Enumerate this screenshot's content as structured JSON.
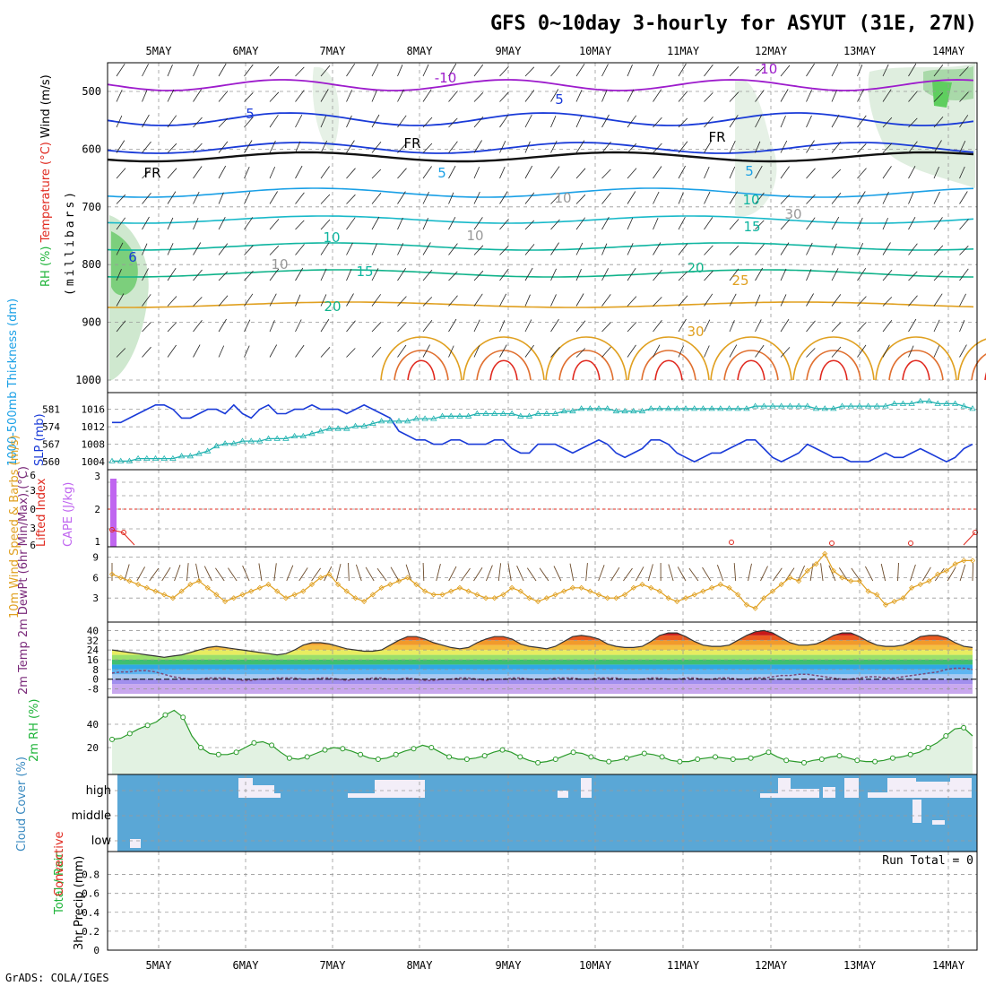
{
  "title": "GFS 0~10day 3-hourly for ASYUT (31E, 27N)",
  "footer": "GrADS: COLA/IGES",
  "run_total": "Run Total = 0",
  "dates": [
    "5MAY",
    "6MAY",
    "7MAY",
    "8MAY",
    "9MAY",
    "10MAY",
    "11MAY",
    "12MAY",
    "13MAY",
    "14MAY"
  ],
  "colors": {
    "purple": "#9d1bcc",
    "blue": "#1a3bd8",
    "lightblue": "#1aa0e6",
    "teal": "#0fb5a0",
    "orange": "#e0a020",
    "red": "#e0281e",
    "green": "#1fb43a",
    "cloud": "#5aa7d6"
  },
  "panel1": {
    "ylabel_rh": "RH (%)",
    "ylabel_temp": "Temperature (°C)",
    "ylabel_wind": "Wind (m/s)",
    "ylabel_mb": "(millibars)",
    "yticks": [
      "500",
      "600",
      "700",
      "800",
      "900",
      "1000"
    ],
    "contour_labels": [
      "-10",
      "-10",
      "5",
      "5",
      "FR",
      "FR",
      "FR",
      "5",
      "5",
      "10",
      "10",
      "15",
      "15",
      "20",
      "20",
      "25",
      "30",
      "10",
      "10",
      "10",
      "30",
      "6"
    ]
  },
  "panel2": {
    "ylabel_left": "1000-500mb Thickness (dm)",
    "ylabel_right": "SLP (mb)",
    "yticks_left": [
      "581",
      "574",
      "567",
      "560"
    ],
    "yticks_right": [
      "1016",
      "1012",
      "1008",
      "1004"
    ],
    "chart_data": {
      "type": "line",
      "series": [
        {
          "name": "SLP (mb)",
          "values": [
            1013,
            1013,
            1014,
            1015,
            1016,
            1017,
            1017,
            1016,
            1014,
            1014,
            1015,
            1016,
            1016,
            1015,
            1017,
            1015,
            1014,
            1016,
            1017,
            1015,
            1015,
            1016,
            1016,
            1017,
            1016,
            1016,
            1016,
            1015,
            1016,
            1017,
            1016,
            1015,
            1014,
            1011,
            1010,
            1009,
            1009,
            1008,
            1008,
            1009,
            1009,
            1008,
            1008,
            1008,
            1009,
            1009,
            1007,
            1006,
            1006,
            1008,
            1008,
            1008,
            1007,
            1006,
            1007,
            1008,
            1009,
            1008,
            1006,
            1005,
            1006,
            1007,
            1009,
            1009,
            1008,
            1006,
            1005,
            1004,
            1005,
            1006,
            1006,
            1007,
            1008,
            1009,
            1009,
            1007,
            1005,
            1004,
            1005,
            1006,
            1008,
            1007,
            1006,
            1005,
            1005,
            1004,
            1004,
            1004,
            1005,
            1006,
            1005,
            1005,
            1006,
            1007,
            1006,
            1005,
            1004,
            1005,
            1007,
            1008
          ]
        },
        {
          "name": "1000-500mb Thickness (dm)",
          "values": [
            559,
            559,
            559,
            560,
            560,
            560,
            560,
            560,
            561,
            561,
            562,
            563,
            565,
            566,
            566,
            567,
            567,
            567,
            568,
            568,
            568,
            569,
            569,
            570,
            571,
            572,
            572,
            572,
            573,
            573,
            574,
            575,
            575,
            575,
            575,
            576,
            576,
            576,
            577,
            577,
            577,
            577,
            578,
            578,
            578,
            578,
            578,
            577,
            577,
            578,
            578,
            578,
            579,
            579,
            580,
            580,
            580,
            580,
            579,
            579,
            579,
            579,
            580,
            580,
            580,
            580,
            580,
            580,
            580,
            580,
            580,
            580,
            580,
            580,
            581,
            581,
            581,
            581,
            581,
            581,
            581,
            580,
            580,
            580,
            581,
            581,
            581,
            581,
            581,
            581,
            582,
            582,
            582,
            583,
            583,
            582,
            582,
            582,
            581,
            580
          ]
        }
      ],
      "ylim_right": [
        1003,
        1019
      ]
    }
  },
  "panel3": {
    "ylabel_left": "Lifted Index",
    "ylabel_right": "CAPE (J/kg)",
    "yticks_left": [
      "-6",
      "-3",
      "0",
      "3",
      "6"
    ],
    "yticks_right": [
      "3",
      "2",
      "1"
    ],
    "chart_data": {
      "type": "bar",
      "values": [
        3,
        0,
        0,
        0,
        0,
        0,
        0,
        0,
        0,
        0
      ],
      "note": "CAPE bar near start only"
    }
  },
  "panel4": {
    "ylabel": "10m Wind Speed & Barbs (m/s)",
    "yticks": [
      "9",
      "6",
      "3"
    ],
    "chart_data": {
      "type": "line",
      "values": [
        6.5,
        6,
        5.5,
        5,
        4.5,
        4,
        3.5,
        3,
        4,
        5,
        5.5,
        4.5,
        3.5,
        2.5,
        3,
        3.5,
        4,
        4.5,
        5,
        4,
        3,
        3.5,
        4,
        5,
        6,
        6.5,
        5,
        4,
        3,
        2.5,
        3.5,
        4.5,
        5,
        5.5,
        6,
        5,
        4,
        3.5,
        3.5,
        4,
        4.5,
        4,
        3.5,
        3,
        3,
        3.5,
        4.5,
        4,
        3,
        2.5,
        3,
        3.5,
        4,
        4.5,
        4.5,
        4,
        3.5,
        3,
        3,
        3.5,
        4.5,
        5,
        4.5,
        4,
        3,
        2.5,
        3,
        3.5,
        4,
        4.5,
        5,
        4.5,
        3.5,
        2,
        1.5,
        3,
        4,
        5,
        6,
        5.5,
        7,
        8,
        9.5,
        7,
        6,
        5.5,
        5.5,
        4,
        3.5,
        2,
        2.5,
        3,
        4.5,
        5,
        5.5,
        6.5,
        7,
        8,
        8.5,
        8.5
      ]
    }
  },
  "panel5": {
    "ylabel": "2m Temp 2m DewPt (6hr Min/Max) (°C)",
    "yticks": [
      "40",
      "32",
      "24",
      "16",
      "8",
      "0",
      "-8"
    ],
    "chart_data": {
      "type": "area",
      "series": [
        {
          "name": "2m Temp",
          "values": [
            24,
            23,
            22,
            21,
            20,
            19,
            18,
            19,
            20,
            22,
            24,
            26,
            27,
            26,
            25,
            24,
            23,
            22,
            21,
            20,
            21,
            24,
            28,
            30,
            30,
            29,
            27,
            25,
            24,
            23,
            23,
            24,
            28,
            32,
            35,
            35,
            33,
            30,
            28,
            26,
            25,
            26,
            30,
            33,
            35,
            35,
            33,
            29,
            27,
            26,
            25,
            27,
            31,
            35,
            36,
            35,
            33,
            29,
            27,
            26,
            26,
            27,
            31,
            36,
            38,
            38,
            35,
            31,
            28,
            27,
            27,
            28,
            32,
            36,
            39,
            40,
            38,
            34,
            30,
            28,
            28,
            29,
            32,
            36,
            38,
            38,
            35,
            31,
            28,
            27,
            27,
            28,
            31,
            35,
            36,
            36,
            34,
            30,
            27,
            26
          ]
        },
        {
          "name": "2m DewPt",
          "values": [
            5,
            6,
            6,
            7,
            7,
            6,
            4,
            2,
            1,
            0,
            0,
            1,
            1,
            1,
            0,
            -1,
            -1,
            0,
            0,
            1,
            1,
            1,
            0,
            0,
            1,
            1,
            0,
            -1,
            0,
            0,
            1,
            1,
            0,
            0,
            1,
            0,
            -1,
            -1,
            0,
            0,
            1,
            1,
            0,
            -1,
            0,
            0,
            1,
            1,
            0,
            0,
            0,
            1,
            1,
            1,
            0,
            0,
            1,
            1,
            1,
            0,
            0,
            0,
            1,
            1,
            0,
            0,
            1,
            1,
            0,
            0,
            1,
            1,
            0,
            0,
            1,
            1,
            2,
            3,
            3,
            4,
            4,
            3,
            2,
            1,
            0,
            0,
            1,
            2,
            2,
            1,
            1,
            2,
            3,
            4,
            5,
            6,
            8,
            9,
            9,
            8
          ]
        }
      ]
    }
  },
  "panel6": {
    "ylabel": "2m RH (%)",
    "yticks": [
      "40",
      "20"
    ],
    "chart_data": {
      "type": "area",
      "values": [
        27,
        28,
        32,
        36,
        39,
        42,
        48,
        52,
        46,
        30,
        20,
        15,
        14,
        14,
        16,
        20,
        24,
        25,
        22,
        16,
        11,
        10,
        12,
        15,
        18,
        20,
        19,
        17,
        14,
        11,
        10,
        11,
        14,
        17,
        19,
        22,
        20,
        16,
        12,
        10,
        10,
        11,
        13,
        16,
        18,
        16,
        12,
        9,
        7,
        8,
        10,
        13,
        16,
        15,
        12,
        9,
        8,
        9,
        11,
        13,
        15,
        14,
        12,
        9,
        8,
        8,
        10,
        11,
        12,
        11,
        10,
        10,
        11,
        13,
        16,
        12,
        9,
        8,
        7,
        9,
        10,
        12,
        13,
        11,
        9,
        8,
        8,
        9,
        11,
        12,
        14,
        16,
        20,
        24,
        30,
        36,
        37,
        30
      ]
    }
  },
  "panel7": {
    "ylabel": "Cloud Cover (%)",
    "levels": [
      "high",
      "middle",
      "low"
    ]
  },
  "panel8": {
    "ylabel_left": "Total / Rain",
    "ylabel_right": "Convective",
    "ylabel_mm": "3hr Precip (mm)",
    "yticks": [
      "0.8",
      "0.6",
      "0.4",
      "0.2",
      "0"
    ]
  }
}
